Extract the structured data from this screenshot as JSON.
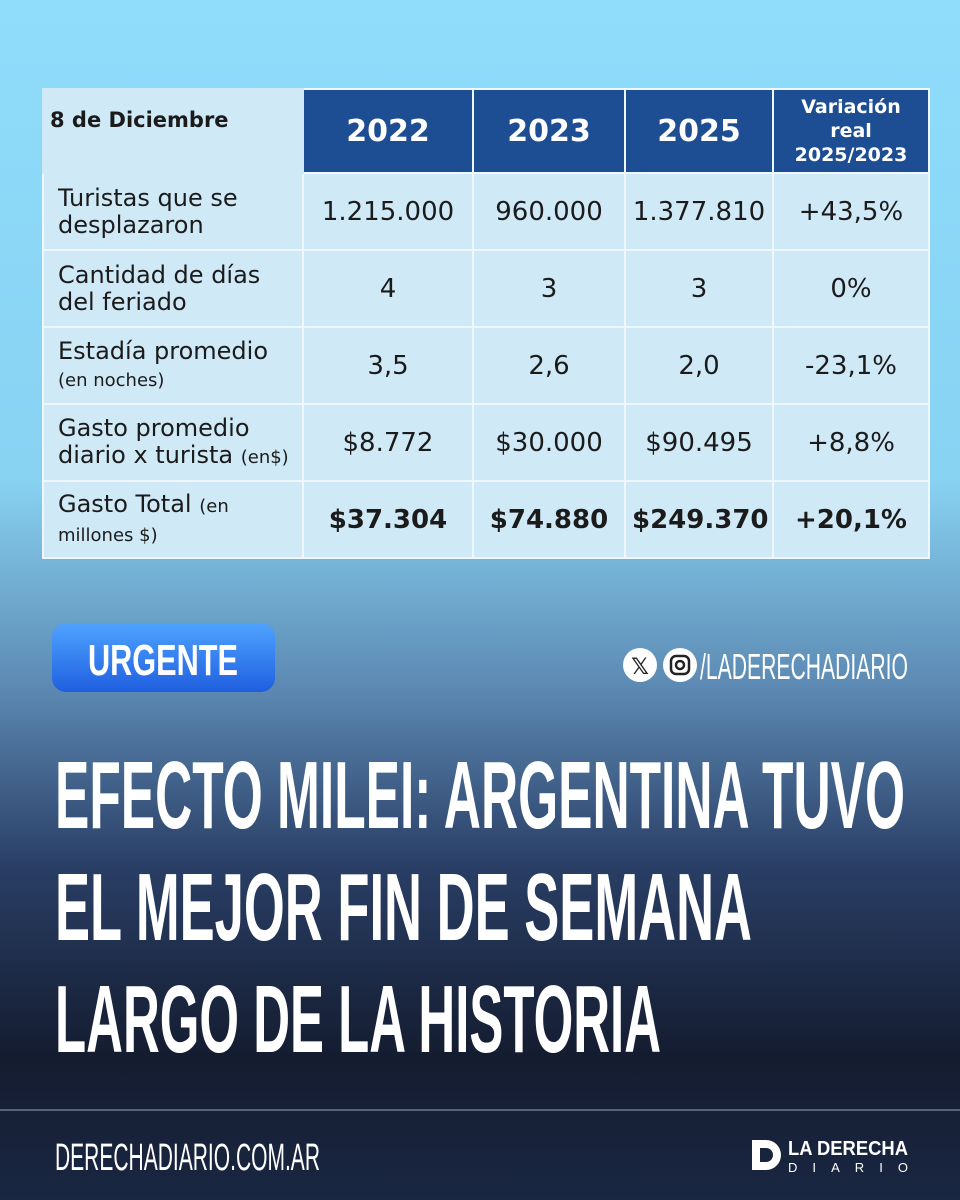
{
  "table": {
    "corner": "8 de Diciembre",
    "columns": [
      "2022",
      "2023",
      "2025",
      "Variación real 2025/2023"
    ],
    "rows": [
      {
        "label": "Turistas que se desplazaron",
        "cells": [
          "1.215.000",
          "960.000",
          "1.377.810",
          "+43,5%"
        ]
      },
      {
        "label": "Cantidad de días del feriado",
        "cells": [
          "4",
          "3",
          "3",
          "0%"
        ]
      },
      {
        "label": "Estadía promedio",
        "note": "(en noches)",
        "cells": [
          "3,5",
          "2,6",
          "2,0",
          "-23,1%"
        ]
      },
      {
        "label": "Gasto promedio diario x turista",
        "note": "(en$)",
        "cells": [
          "$8.772",
          "$30.000",
          "$90.495",
          "+8,8%"
        ]
      },
      {
        "label": "Gasto Total",
        "note": "(en millones $)",
        "cells": [
          "$37.304",
          "$74.880",
          "$249.370",
          "+20,1%"
        ]
      }
    ]
  },
  "badge": "URGENTE",
  "social_handle": "/LADERECHADIARIO",
  "headline": {
    "lines": [
      "EFECTO MILEI: ARGENTINA TUVO",
      "EL MEJOR FIN DE SEMANA",
      "LARGO DE LA HISTORIA"
    ]
  },
  "footer": {
    "website": "DERECHADIARIO.COM.AR",
    "logo_top": "LA DERECHA",
    "logo_bottom": "DIARIO"
  }
}
